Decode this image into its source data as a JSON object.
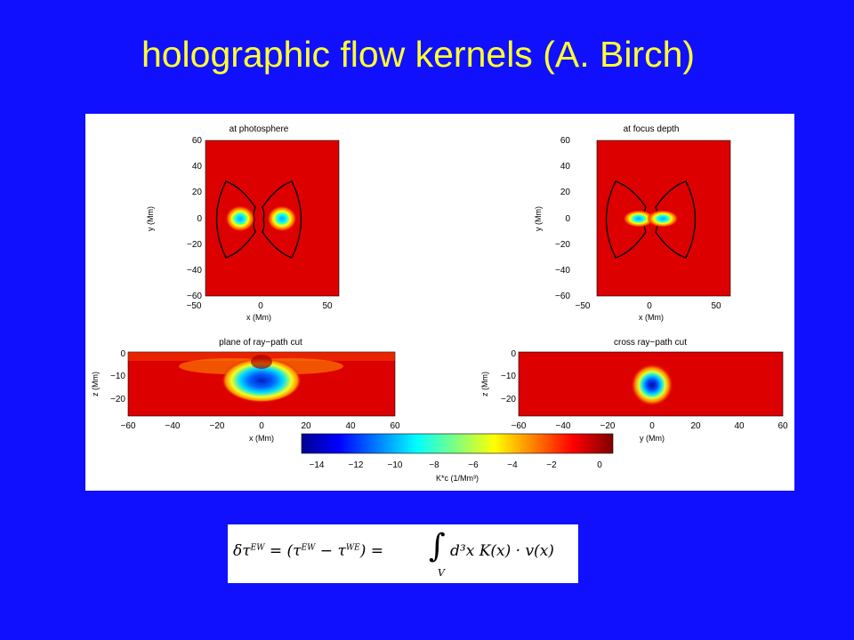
{
  "slide": {
    "title": "holographic flow kernels (A. Birch)",
    "formula": {
      "text_before": "δτ",
      "sup1": "EW",
      "text_mid": " = (τ",
      "sup2": "EW",
      "text_mid2": " − τ",
      "sup3": "WE",
      "text_after": ") = ",
      "integral": "∫",
      "integral_limit": "V",
      "integrand": "d³x K(x) · v(x)"
    }
  },
  "chart_data": [
    {
      "type": "heatmap",
      "title": "at photosphere",
      "xlabel": "x (Mm)",
      "ylabel": "y (Mm)",
      "xlim": [
        -60,
        60
      ],
      "ylim": [
        -60,
        60
      ],
      "xticks": [
        "−50",
        "0",
        "50"
      ],
      "yticks": [
        "60",
        "40",
        "20",
        "0",
        "−20",
        "−40",
        "−60"
      ],
      "features": "two negative lobes at x ≈ ±17, y = 0 inside bow-tie shaped contour"
    },
    {
      "type": "heatmap",
      "title": "at focus depth",
      "xlabel": "x (Mm)",
      "ylabel": "y (Mm)",
      "xlim": [
        -60,
        60
      ],
      "ylim": [
        -60,
        60
      ],
      "xticks": [
        "−50",
        "0",
        "50"
      ],
      "yticks": [
        "60",
        "40",
        "20",
        "0",
        "−20",
        "−40",
        "−60"
      ],
      "features": "narrow negative lobes at x ≈ ±7, y = 0 inside bow-tie shaped contour"
    },
    {
      "type": "heatmap",
      "title": "plane of ray−path cut",
      "xlabel": "x (Mm)",
      "ylabel": "z (Mm)",
      "xlim": [
        -60,
        60
      ],
      "ylim": [
        -25,
        0
      ],
      "xticks": [
        "−60",
        "−40",
        "−20",
        "0",
        "20",
        "40",
        "60"
      ],
      "yticks": [
        "0",
        "−10",
        "−20"
      ],
      "features": "strong negative region centered near x = 0, z ≈ −15"
    },
    {
      "type": "heatmap",
      "title": "cross ray−path cut",
      "xlabel": "y (Mm)",
      "ylabel": "z (Mm)",
      "xlim": [
        -60,
        60
      ],
      "ylim": [
        -25,
        0
      ],
      "xticks": [
        "−60",
        "−40",
        "−20",
        "0",
        "20",
        "40",
        "60"
      ],
      "yticks": [
        "0",
        "−10",
        "−20"
      ],
      "features": "circular negative spot centered at y = 0, z ≈ −15"
    }
  ],
  "colorbar": {
    "label": "K*c (1/Mm³)",
    "range": [
      -15,
      1
    ],
    "ticks": [
      "−14",
      "−12",
      "−10",
      "−8",
      "−6",
      "−4",
      "−2",
      "0"
    ],
    "colormap": "jet"
  }
}
